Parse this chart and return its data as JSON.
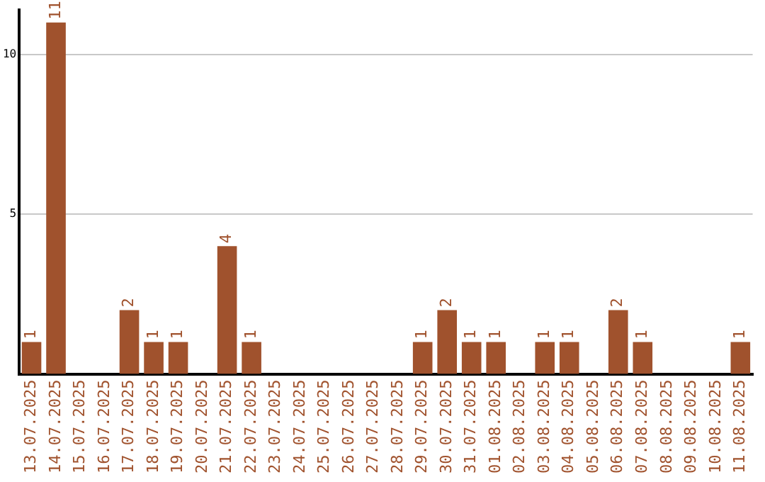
{
  "chart_data": {
    "type": "bar",
    "categories": [
      "13.07.2025",
      "14.07.2025",
      "15.07.2025",
      "16.07.2025",
      "17.07.2025",
      "18.07.2025",
      "19.07.2025",
      "20.07.2025",
      "21.07.2025",
      "22.07.2025",
      "23.07.2025",
      "24.07.2025",
      "25.07.2025",
      "26.07.2025",
      "27.07.2025",
      "28.07.2025",
      "29.07.2025",
      "30.07.2025",
      "31.07.2025",
      "01.08.2025",
      "02.08.2025",
      "03.08.2025",
      "04.08.2025",
      "05.08.2025",
      "06.08.2025",
      "07.08.2025",
      "08.08.2025",
      "09.08.2025",
      "10.08.2025",
      "11.08.2025"
    ],
    "values": [
      1,
      11,
      0,
      0,
      2,
      1,
      1,
      0,
      4,
      1,
      0,
      0,
      0,
      0,
      0,
      0,
      1,
      2,
      1,
      1,
      0,
      1,
      1,
      0,
      2,
      1,
      0,
      0,
      0,
      1
    ],
    "value_labels": [
      "1",
      "11",
      null,
      null,
      "2",
      "1",
      "1",
      null,
      "4",
      "1",
      null,
      null,
      null,
      null,
      null,
      null,
      "1",
      "2",
      "1",
      "1",
      null,
      "1",
      "1",
      null,
      "2",
      "1",
      null,
      null,
      null,
      "1"
    ],
    "color": "#a0522d",
    "ylim": [
      0,
      11.4
    ],
    "yticks": [
      5,
      10
    ],
    "grid": "y",
    "legend": false
  }
}
